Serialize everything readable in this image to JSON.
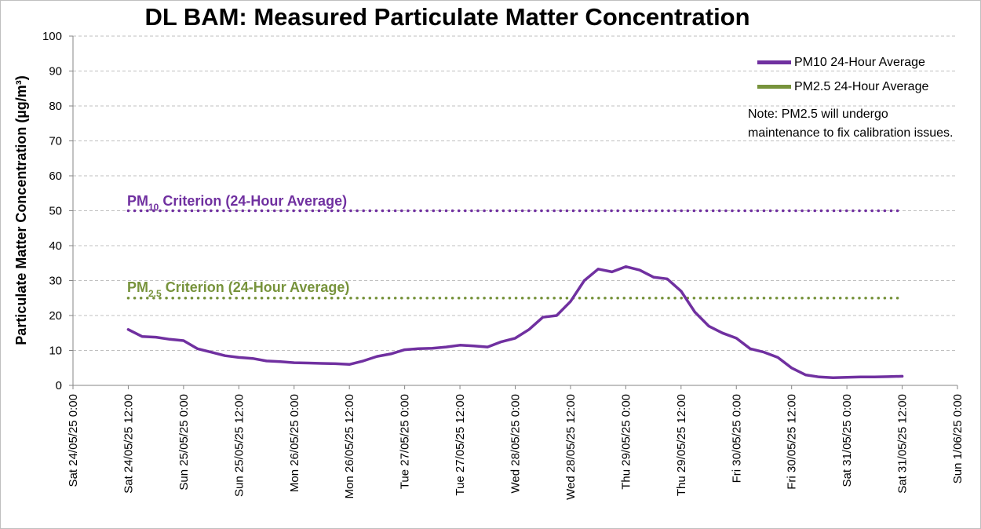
{
  "title": "DL BAM: Measured Particulate Matter Concentration",
  "colors": {
    "pm10": "#7030a0",
    "pm25": "#77933c",
    "grid": "#bfbfbf",
    "axis": "#868686"
  },
  "legend": {
    "pm10": "PM10 24-Hour Average",
    "pm25": "PM2.5 24-Hour Average"
  },
  "note": "Note: PM2.5 will undergo maintenance to fix calibration issues.",
  "criteria": {
    "pm10": {
      "prefix": "PM",
      "sub": "10",
      "suffix": " Criterion (24-Hour Average)",
      "value": 50
    },
    "pm25": {
      "prefix": "PM",
      "sub": "2.5",
      "suffix": " Criterion (24-Hour Average)",
      "value": 25
    }
  },
  "chart_data": {
    "type": "line",
    "title": "DL BAM: Measured Particulate Matter Concentration",
    "ylabel": "Particulate Matter Concentration (µg/m³)",
    "xlabel": "",
    "ylim": [
      0,
      100
    ],
    "yticks": [
      0,
      10,
      20,
      30,
      40,
      50,
      60,
      70,
      80,
      90,
      100
    ],
    "grid": true,
    "legend_position": "top-right",
    "xtick_labels": [
      "Sat 24/05/25 0:00",
      "Sat 24/05/25 12:00",
      "Sun 25/05/25 0:00",
      "Sun 25/05/25 12:00",
      "Mon 26/05/25 0:00",
      "Mon 26/05/25 12:00",
      "Tue 27/05/25 0:00",
      "Tue 27/05/25 12:00",
      "Wed 28/05/25 0:00",
      "Wed 28/05/25 12:00",
      "Thu 29/05/25 0:00",
      "Thu 29/05/25 12:00",
      "Fri 30/05/25 0:00",
      "Fri 30/05/25 12:00",
      "Sat 31/05/25 0:00",
      "Sat 31/05/25 12:00",
      "Sun 1/06/25 0:00"
    ],
    "series": [
      {
        "name": "PM10 24-Hour Average",
        "color": "#7030a0",
        "x": [
          "24/05/25 12:00",
          "24/05/25 15:00",
          "24/05/25 18:00",
          "24/05/25 21:00",
          "25/05/25 0:00",
          "25/05/25 3:00",
          "25/05/25 6:00",
          "25/05/25 9:00",
          "25/05/25 12:00",
          "25/05/25 15:00",
          "25/05/25 18:00",
          "25/05/25 21:00",
          "26/05/25 0:00",
          "26/05/25 3:00",
          "26/05/25 6:00",
          "26/05/25 9:00",
          "26/05/25 12:00",
          "26/05/25 15:00",
          "26/05/25 18:00",
          "26/05/25 21:00",
          "27/05/25 0:00",
          "27/05/25 3:00",
          "27/05/25 6:00",
          "27/05/25 9:00",
          "27/05/25 12:00",
          "27/05/25 15:00",
          "27/05/25 18:00",
          "27/05/25 21:00",
          "28/05/25 0:00",
          "28/05/25 3:00",
          "28/05/25 6:00",
          "28/05/25 9:00",
          "28/05/25 12:00",
          "28/05/25 15:00",
          "28/05/25 18:00",
          "28/05/25 21:00",
          "29/05/25 0:00",
          "29/05/25 3:00",
          "29/05/25 6:00",
          "29/05/25 9:00",
          "29/05/25 12:00",
          "29/05/25 15:00",
          "29/05/25 18:00",
          "29/05/25 21:00",
          "30/05/25 0:00",
          "30/05/25 3:00",
          "30/05/25 6:00",
          "30/05/25 9:00",
          "30/05/25 12:00",
          "30/05/25 15:00",
          "30/05/25 18:00",
          "30/05/25 21:00",
          "31/05/25 0:00",
          "31/05/25 3:00",
          "31/05/25 6:00",
          "31/05/25 9:00",
          "31/05/25 12:00"
        ],
        "values": [
          16.0,
          14.0,
          13.8,
          13.2,
          12.8,
          10.5,
          9.5,
          8.5,
          8.0,
          7.7,
          7.0,
          6.8,
          6.5,
          6.4,
          6.3,
          6.2,
          6.0,
          7.0,
          8.3,
          9.0,
          10.2,
          10.5,
          10.6,
          11.0,
          11.5,
          11.3,
          11.0,
          12.5,
          13.5,
          16.0,
          19.5,
          20.0,
          24.0,
          30.0,
          33.3,
          32.5,
          34.0,
          33.0,
          31.0,
          30.5,
          27.0,
          21.0,
          17.0,
          15.0,
          13.5,
          10.5,
          9.5,
          8.0,
          5.0,
          3.0,
          2.4,
          2.2,
          2.3,
          2.4,
          2.4,
          2.5,
          2.6
        ]
      },
      {
        "name": "PM2.5 24-Hour Average",
        "color": "#77933c",
        "values": []
      }
    ],
    "reference_lines": [
      {
        "label": "PM10 Criterion (24-Hour Average)",
        "value": 50,
        "color": "#7030a0",
        "x_range": [
          "24/05/25 12:00",
          "31/05/25 12:00"
        ]
      },
      {
        "label": "PM2.5 Criterion (24-Hour Average)",
        "value": 25,
        "color": "#77933c",
        "x_range": [
          "24/05/25 12:00",
          "31/05/25 12:00"
        ]
      }
    ]
  }
}
